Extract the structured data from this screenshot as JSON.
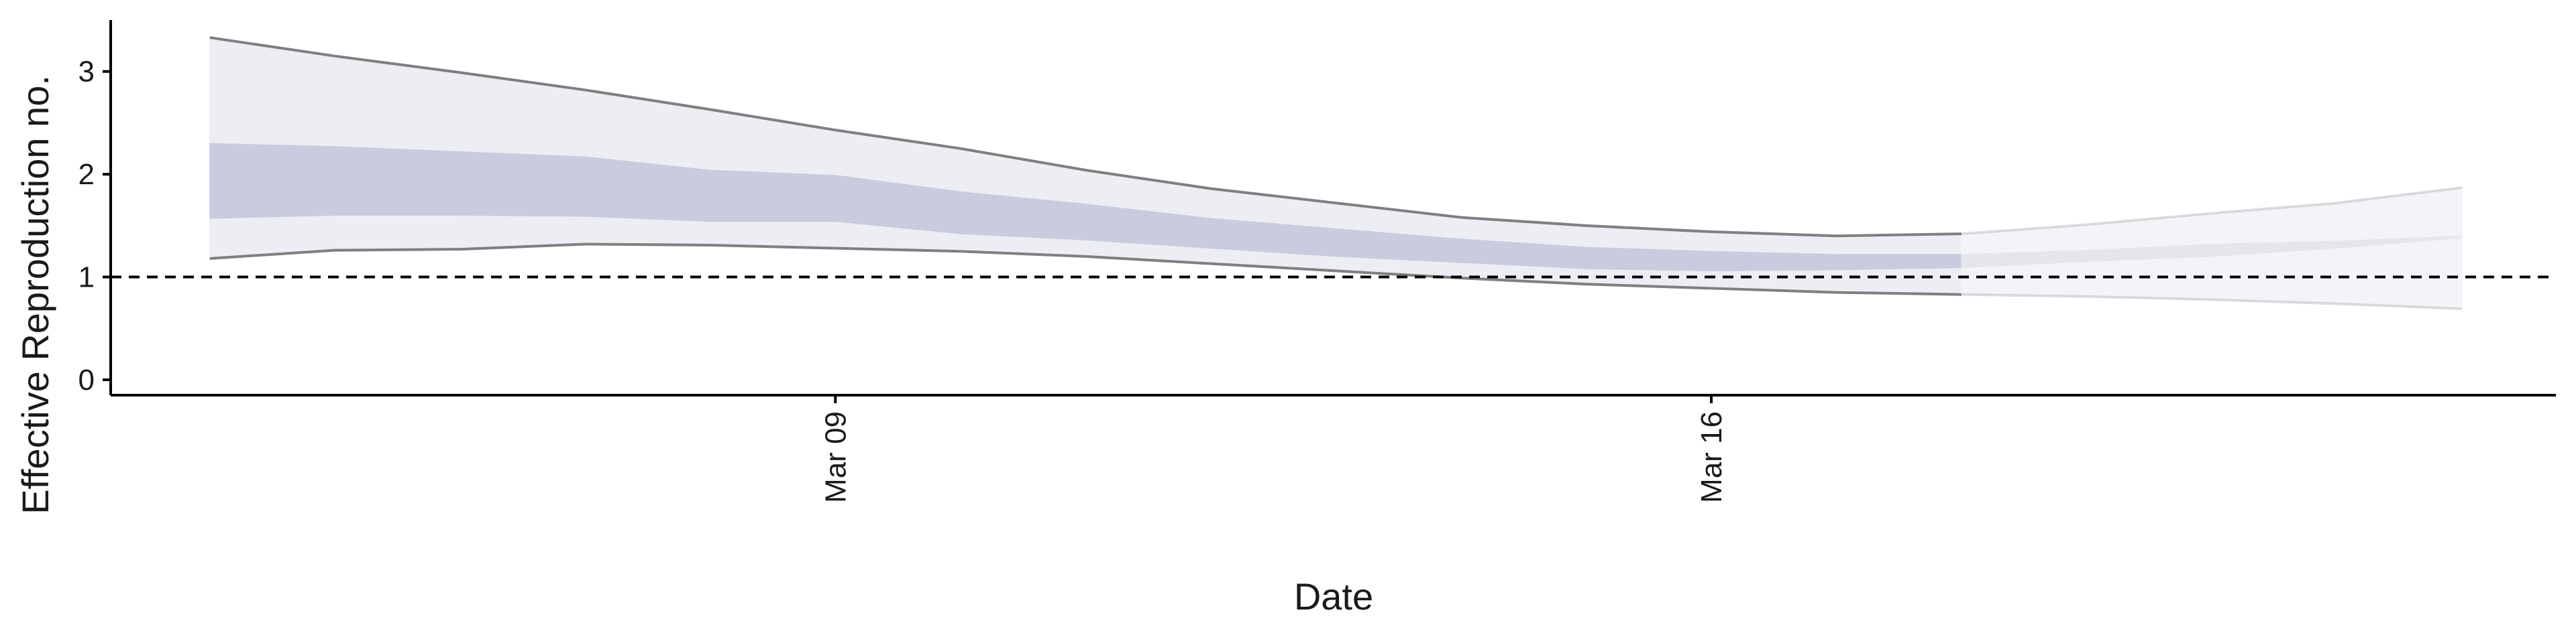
{
  "chart_data": {
    "type": "area",
    "xlabel": "Date",
    "ylabel": "Effective Reproduction no.",
    "x": [
      "2020-03-04",
      "2020-03-05",
      "2020-03-06",
      "2020-03-07",
      "2020-03-08",
      "2020-03-09",
      "2020-03-10",
      "2020-03-11",
      "2020-03-12",
      "2020-03-13",
      "2020-03-14",
      "2020-03-15",
      "2020-03-16",
      "2020-03-17",
      "2020-03-18",
      "2020-03-19",
      "2020-03-20",
      "2020-03-21",
      "2020-03-22"
    ],
    "x_ticks": [
      {
        "date": "2020-03-09",
        "label": "Mar 09"
      },
      {
        "date": "2020-03-16",
        "label": "Mar 16"
      }
    ],
    "xlim": [
      "2020-03-03 05:00",
      "2020-03-22 18:00"
    ],
    "ylim": [
      -0.15,
      3.5
    ],
    "y_ticks": [
      0,
      1,
      2,
      3
    ],
    "reference_line": {
      "y": 1,
      "style": "dashed"
    },
    "series": [
      {
        "role": "90% interval",
        "lower": [
          1.18,
          1.26,
          1.27,
          1.32,
          1.31,
          1.28,
          1.25,
          1.2,
          1.13,
          1.06,
          0.99,
          0.93,
          0.89,
          0.85,
          0.83,
          0.81,
          0.78,
          0.74,
          0.69
        ],
        "upper": [
          3.33,
          3.15,
          2.99,
          2.82,
          2.63,
          2.43,
          2.25,
          2.04,
          1.86,
          1.72,
          1.58,
          1.5,
          1.44,
          1.4,
          1.42,
          1.51,
          1.62,
          1.72,
          1.87
        ]
      },
      {
        "role": "50% interval",
        "lower": [
          1.57,
          1.6,
          1.6,
          1.59,
          1.54,
          1.54,
          1.42,
          1.36,
          1.28,
          1.2,
          1.14,
          1.08,
          1.06,
          1.07,
          1.09,
          1.15,
          1.2,
          1.28,
          1.38
        ],
        "upper": [
          2.3,
          2.27,
          2.22,
          2.17,
          2.04,
          1.99,
          1.83,
          1.71,
          1.57,
          1.47,
          1.37,
          1.29,
          1.25,
          1.22,
          1.22,
          1.26,
          1.32,
          1.35,
          1.4
        ]
      }
    ],
    "colors": {
      "outer_band": "#eceef3",
      "inner_band": "#c9ccde",
      "bound_line": "#7f7f7f",
      "forecast_outer_band": "#f3f4f7",
      "forecast_inner_band": "#e5e6ec",
      "reference_line": "#000000"
    },
    "grid": false,
    "legend": "none"
  }
}
